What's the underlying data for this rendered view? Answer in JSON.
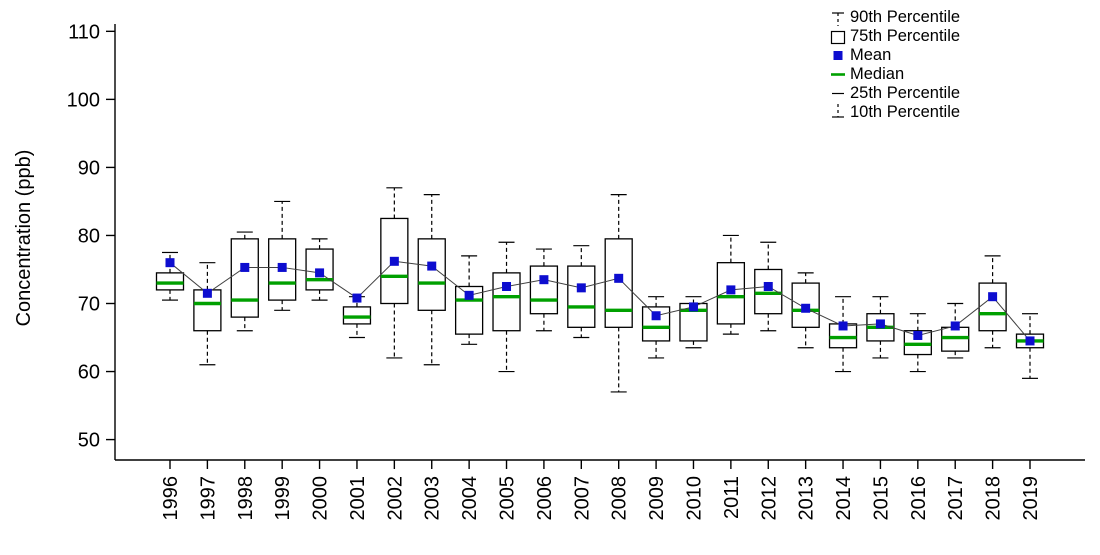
{
  "chart_data": {
    "type": "box",
    "title": "",
    "xlabel": "",
    "ylabel": "Concentration (ppb)",
    "ylim": [
      47,
      112.4
    ],
    "yticks": [
      50,
      60,
      70,
      80,
      90,
      100,
      110
    ],
    "categories": [
      1996,
      1997,
      1998,
      1999,
      2000,
      2001,
      2002,
      2003,
      2004,
      2005,
      2006,
      2007,
      2008,
      2009,
      2010,
      2011,
      2012,
      2013,
      2014,
      2015,
      2016,
      2017,
      2018,
      2019
    ],
    "series": {
      "p10": [
        70.5,
        61,
        66,
        69,
        70.5,
        65,
        62,
        61,
        64,
        60,
        66,
        65,
        57,
        62,
        63.5,
        65.5,
        66,
        63.5,
        60,
        62,
        60,
        62,
        63.5,
        59
      ],
      "p25": [
        72,
        66,
        68,
        70.5,
        72,
        67,
        70,
        69,
        65.5,
        66,
        68.5,
        66.5,
        66.5,
        64.5,
        64.5,
        67,
        68.5,
        66.5,
        63.5,
        64.5,
        62.5,
        63,
        66,
        63.5
      ],
      "median": [
        73,
        70,
        70.5,
        73,
        73.5,
        68,
        74,
        73,
        70.5,
        71,
        70.5,
        69.5,
        69,
        66.5,
        69,
        71,
        71.5,
        69,
        65,
        66.5,
        64,
        65,
        68.5,
        64.5
      ],
      "p75": [
        74.5,
        72,
        79.5,
        79.5,
        78,
        69.5,
        82.5,
        79.5,
        72.5,
        74.5,
        75.5,
        75.5,
        79.5,
        69.5,
        70,
        76,
        75,
        73,
        67,
        68.5,
        66,
        66.5,
        73,
        65.5
      ],
      "p90": [
        77.5,
        76,
        80.5,
        85,
        79.5,
        71,
        87,
        86,
        77,
        79,
        78,
        78.5,
        86,
        71,
        71,
        80,
        79,
        74.5,
        71,
        71,
        68.5,
        70,
        77,
        68.5
      ],
      "mean": [
        76,
        71.5,
        75.3,
        75.3,
        74.5,
        70.8,
        76.2,
        75.5,
        71.2,
        72.5,
        73.5,
        72.3,
        73.7,
        68.2,
        69.5,
        72,
        72.5,
        69.3,
        66.7,
        67,
        65.3,
        66.7,
        71,
        64.5
      ]
    },
    "legend": [
      "90th Percentile",
      "75th Percentile",
      "Mean",
      "Median",
      "25th Percentile",
      "10th Percentile"
    ],
    "legend_position": "top-right",
    "grid": false,
    "colors": {
      "box_stroke": "#000000",
      "box_fill": "#ffffff",
      "median": "#00a000",
      "mean": "#0d0dcf",
      "mean_line": "#404040",
      "whisker": "#000000",
      "axis": "#000000",
      "background": "#ffffff"
    }
  }
}
